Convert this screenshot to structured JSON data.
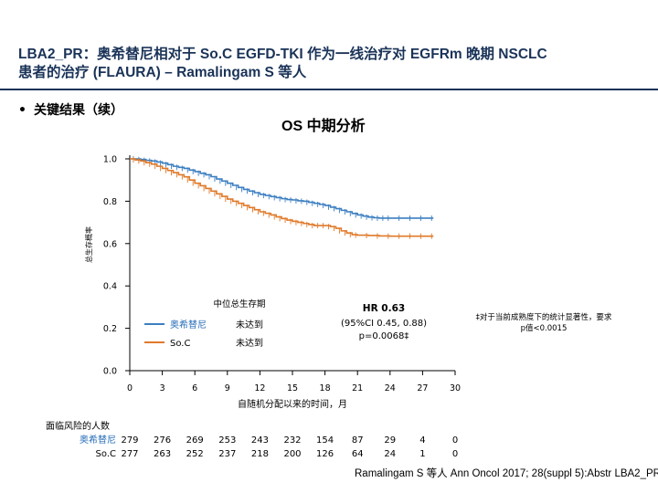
{
  "slide": {
    "title_line1": "LBA2_PR：奥希替尼相对于 So.C EGFD-TKI 作为一线治疗对 EGFRm 晚期 NSCLC",
    "title_line2": "患者的治疗 (FLAURA) – Ramalingam S 等人",
    "bullet": "关键结果（续）",
    "footer": "Ramalingam S 等人 Ann Oncol 2017; 28(suppl 5):Abstr LBA2_PR"
  },
  "chart_data": {
    "type": "line",
    "title": "OS 中期分析",
    "xlabel": "自随机分配以来的时间，月",
    "ylabel": "总生存概率",
    "xlim": [
      0,
      30
    ],
    "ylim": [
      0,
      1.0
    ],
    "x_ticks": [
      0,
      3,
      6,
      9,
      12,
      15,
      18,
      21,
      24,
      27,
      30
    ],
    "y_ticks": [
      "0.0",
      "0.2",
      "0.4",
      "0.6",
      "0.8",
      "1.0"
    ],
    "colors": {
      "osimertinib": "#3c7fc1",
      "soc": "#e07a2a"
    },
    "series": [
      {
        "name": "奥希替尼",
        "x": [
          0,
          0.5,
          1,
          1.5,
          2,
          2.5,
          3,
          3.5,
          4,
          4.5,
          5,
          5.5,
          6,
          6.5,
          7,
          7.5,
          8,
          8.5,
          9,
          9.5,
          10,
          10.5,
          11,
          11.5,
          12,
          12.5,
          13,
          13.5,
          14,
          14.5,
          15,
          15.5,
          16,
          16.5,
          17,
          17.5,
          18,
          18.5,
          19,
          19.5,
          20,
          20.5,
          21,
          21.5,
          22,
          22.5,
          23,
          23.5,
          24,
          25,
          26,
          27,
          28
        ],
        "y": [
          1.0,
          1.0,
          0.997,
          0.993,
          0.99,
          0.985,
          0.98,
          0.973,
          0.965,
          0.96,
          0.955,
          0.947,
          0.94,
          0.932,
          0.925,
          0.916,
          0.905,
          0.895,
          0.885,
          0.875,
          0.865,
          0.856,
          0.848,
          0.84,
          0.832,
          0.827,
          0.822,
          0.817,
          0.812,
          0.808,
          0.806,
          0.802,
          0.8,
          0.795,
          0.79,
          0.785,
          0.78,
          0.772,
          0.765,
          0.757,
          0.75,
          0.742,
          0.735,
          0.73,
          0.725,
          0.722,
          0.72,
          0.72,
          0.72,
          0.72,
          0.72,
          0.72,
          0.72
        ]
      },
      {
        "name": "So.C",
        "x": [
          0,
          0.5,
          1,
          1.5,
          2,
          2.5,
          3,
          3.5,
          4,
          4.5,
          5,
          5.5,
          6,
          6.5,
          7,
          7.5,
          8,
          8.5,
          9,
          9.5,
          10,
          10.5,
          11,
          11.5,
          12,
          12.5,
          13,
          13.5,
          14,
          14.5,
          15,
          15.5,
          16,
          16.5,
          17,
          17.5,
          18,
          18.5,
          19,
          19.5,
          20,
          20.5,
          21,
          22,
          23,
          24,
          25,
          26,
          27,
          28
        ],
        "y": [
          1.0,
          0.995,
          0.99,
          0.982,
          0.975,
          0.965,
          0.955,
          0.945,
          0.935,
          0.925,
          0.915,
          0.9,
          0.885,
          0.873,
          0.86,
          0.848,
          0.835,
          0.823,
          0.81,
          0.8,
          0.79,
          0.78,
          0.77,
          0.76,
          0.75,
          0.743,
          0.735,
          0.726,
          0.718,
          0.711,
          0.705,
          0.7,
          0.695,
          0.69,
          0.685,
          0.685,
          0.685,
          0.68,
          0.672,
          0.66,
          0.65,
          0.642,
          0.64,
          0.638,
          0.636,
          0.635,
          0.635,
          0.635,
          0.635,
          0.635
        ]
      }
    ],
    "legend": {
      "header": "中位总生存期",
      "items": [
        {
          "label": "奥希替尼",
          "value": "未达到"
        },
        {
          "label": "So.C",
          "value": "未达到"
        }
      ]
    },
    "annotations": {
      "hr": "HR 0.63",
      "ci": "(95%CI 0.45, 0.88)",
      "p": "p=0.0068‡",
      "footnote_line1": "‡对于当前成熟度下的统计显著性，要求",
      "footnote_line2": "p值<0.0015"
    },
    "risk_table": {
      "header": "面临风险的人数",
      "x": [
        0,
        3,
        6,
        9,
        12,
        15,
        18,
        21,
        24,
        27,
        30
      ],
      "rows": [
        {
          "label": "奥希替尼",
          "values": [
            "279",
            "276",
            "269",
            "253",
            "243",
            "232",
            "154",
            "87",
            "29",
            "4",
            "0"
          ]
        },
        {
          "label": "So.C",
          "values": [
            "277",
            "263",
            "252",
            "237",
            "218",
            "200",
            "126",
            "64",
            "24",
            "1",
            "0"
          ]
        }
      ]
    }
  }
}
